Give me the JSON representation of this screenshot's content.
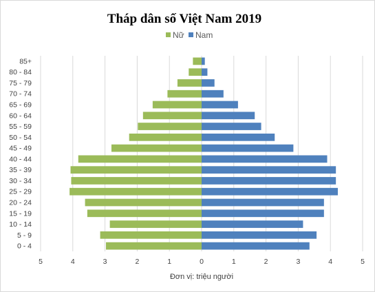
{
  "chart_data": {
    "type": "bar",
    "orientation": "horizontal-butterfly",
    "title": "Tháp dân số Việt Nam 2019",
    "xlabel": "Đơn vị: triệu người",
    "ylabel": "",
    "categories": [
      "0 - 4",
      "5 - 9",
      "10 - 14",
      "15 - 19",
      "20 - 24",
      "25 - 29",
      "30 - 34",
      "35 - 39",
      "40 - 44",
      "45 - 49",
      "50 - 54",
      "55 - 59",
      "60 - 64",
      "65 - 69",
      "70 - 74",
      "75 - 79",
      "80 - 84",
      "85+"
    ],
    "series": [
      {
        "name": "Nữ",
        "color": "#9bbb59",
        "side": "left",
        "values": [
          2.97,
          3.15,
          2.85,
          3.55,
          3.62,
          4.1,
          4.05,
          4.07,
          3.83,
          2.8,
          2.25,
          1.98,
          1.82,
          1.52,
          1.06,
          0.75,
          0.4,
          0.27
        ]
      },
      {
        "name": "Nam",
        "color": "#4f81bd",
        "side": "right",
        "values": [
          3.35,
          3.57,
          3.15,
          3.8,
          3.8,
          4.23,
          4.17,
          4.17,
          3.9,
          2.85,
          2.27,
          1.85,
          1.65,
          1.13,
          0.68,
          0.4,
          0.18,
          0.1
        ]
      }
    ],
    "xlim": [
      -5,
      5
    ],
    "xticks": [
      "5",
      "4",
      "3",
      "2",
      "1",
      "0",
      "1",
      "2",
      "3",
      "4",
      "5"
    ],
    "grid": true,
    "legend_position": "top"
  }
}
